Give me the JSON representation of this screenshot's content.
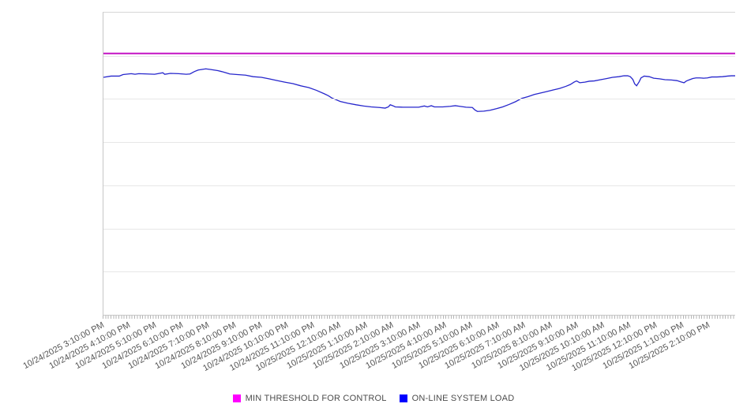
{
  "legend": {
    "items": [
      {
        "label": "MIN THRESHOLD FOR CONTROL",
        "color": "#ff00ff"
      },
      {
        "label": "ON-LINE SYSTEM LOAD",
        "color": "#0000ff"
      }
    ]
  },
  "colors": {
    "axis": "#c6c6c6",
    "plot_top_border": "#d6d6d6",
    "gridline": "#e7e7e7",
    "minor_tick": "#b4b4b4",
    "tick_label_text": "#565656",
    "legend_text": "#4c4c4c",
    "threshold_line": "#c413c4",
    "load_line": "#2626cc"
  },
  "chart_data": {
    "type": "line",
    "title": "",
    "xlabel": "",
    "ylabel": "",
    "x_axis": {
      "label_rotation_deg": -28,
      "minor_tick_spacing_px": 3.34,
      "labels": [
        "10/24/2025 3:10:00 PM",
        "10/24/2025 4:10:00 PM",
        "10/24/2025 5:10:00 PM",
        "10/24/2025 6:10:00 PM",
        "10/24/2025 7:10:00 PM",
        "10/24/2025 8:10:00 PM",
        "10/24/2025 9:10:00 PM",
        "10/24/2025 10:10:00 PM",
        "10/24/2025 11:10:00 PM",
        "10/25/2025 12:10:00 AM",
        "10/25/2025 1:10:00 AM",
        "10/25/2025 2:10:00 AM",
        "10/25/2025 3:10:00 AM",
        "10/25/2025 4:10:00 AM",
        "10/25/2025 5:10:00 AM",
        "10/25/2025 6:10:00 AM",
        "10/25/2025 7:10:00 AM",
        "10/25/2025 8:10:00 AM",
        "10/25/2025 9:10:00 AM",
        "10/25/2025 10:10:00 AM",
        "10/25/2025 11:10:00 AM",
        "10/25/2025 12:10:00 PM",
        "10/25/2025 1:10:00 PM",
        "10/25/2025 2:10:00 PM"
      ]
    },
    "y_axis": {
      "tick_labels_visible": false,
      "inner_gridlines": 6,
      "units": "percent of plot height above x-axis (no y labels shown)",
      "range": [
        0,
        100
      ]
    },
    "legend_position": "bottom-center",
    "grid": true,
    "series": [
      {
        "name": "MIN THRESHOLD FOR CONTROL",
        "type": "threshold",
        "color": "#c413c4",
        "stroke_px": 2,
        "value": 86.5
      },
      {
        "name": "ON-LINE SYSTEM LOAD",
        "type": "line",
        "color": "#2626cc",
        "stroke_px": 1.3,
        "points": [
          [
            0,
            78.6
          ],
          [
            1.2,
            79
          ],
          [
            2.5,
            79
          ],
          [
            3.1,
            79.5
          ],
          [
            4.4,
            79.8
          ],
          [
            5,
            79.6
          ],
          [
            5.6,
            79.8
          ],
          [
            6.9,
            79.7
          ],
          [
            8.1,
            79.6
          ],
          [
            9.4,
            80.1
          ],
          [
            9.7,
            79.6
          ],
          [
            10.6,
            79.9
          ],
          [
            11.9,
            79.8
          ],
          [
            13.1,
            79.6
          ],
          [
            13.7,
            79.7
          ],
          [
            14.4,
            80.5
          ],
          [
            15,
            81
          ],
          [
            15.6,
            81.2
          ],
          [
            16.2,
            81.4
          ],
          [
            16.9,
            81.2
          ],
          [
            17.5,
            81
          ],
          [
            18.1,
            80.8
          ],
          [
            18.7,
            80.5
          ],
          [
            19.4,
            80.1
          ],
          [
            20,
            79.7
          ],
          [
            20.6,
            79.6
          ],
          [
            21.2,
            79.5
          ],
          [
            22.5,
            79.3
          ],
          [
            23.7,
            78.8
          ],
          [
            25,
            78.6
          ],
          [
            26.2,
            78.1
          ],
          [
            27.5,
            77.5
          ],
          [
            28.7,
            77
          ],
          [
            30,
            76.5
          ],
          [
            31.2,
            75.8
          ],
          [
            32.5,
            75.2
          ],
          [
            33.7,
            74.3
          ],
          [
            35,
            73.1
          ],
          [
            35.6,
            72.5
          ],
          [
            36.2,
            71.7
          ],
          [
            36.8,
            71.2
          ],
          [
            37.5,
            70.6
          ],
          [
            38.1,
            70.3
          ],
          [
            38.7,
            70
          ],
          [
            40,
            69.5
          ],
          [
            41.2,
            69.1
          ],
          [
            42.4,
            68.8
          ],
          [
            43.7,
            68.6
          ],
          [
            44.6,
            68.4
          ],
          [
            45.1,
            68.8
          ],
          [
            45.4,
            69.5
          ],
          [
            45.8,
            69.2
          ],
          [
            46.2,
            68.8
          ],
          [
            47.4,
            68.7
          ],
          [
            48.7,
            68.7
          ],
          [
            49.9,
            68.7
          ],
          [
            50.8,
            69.1
          ],
          [
            51.3,
            68.8
          ],
          [
            51.9,
            69.2
          ],
          [
            52.4,
            68.8
          ],
          [
            53.7,
            68.8
          ],
          [
            54.9,
            69
          ],
          [
            55.7,
            69.2
          ],
          [
            56.4,
            69
          ],
          [
            57.4,
            68.7
          ],
          [
            58.4,
            68.6
          ],
          [
            58.8,
            67.8
          ],
          [
            59.2,
            67.3
          ],
          [
            60.2,
            67.4
          ],
          [
            61.2,
            67.7
          ],
          [
            62.2,
            68.2
          ],
          [
            63.2,
            68.8
          ],
          [
            64.2,
            69.6
          ],
          [
            65.2,
            70.5
          ],
          [
            66.2,
            71.6
          ],
          [
            67.2,
            72.2
          ],
          [
            68.2,
            72.9
          ],
          [
            69.2,
            73.4
          ],
          [
            70.2,
            73.9
          ],
          [
            71.2,
            74.4
          ],
          [
            72.2,
            74.9
          ],
          [
            73.2,
            75.6
          ],
          [
            73.9,
            76.2
          ],
          [
            74.5,
            77
          ],
          [
            74.9,
            77.4
          ],
          [
            75.4,
            76.8
          ],
          [
            76.2,
            77
          ],
          [
            76.9,
            77.3
          ],
          [
            77.7,
            77.4
          ],
          [
            78.7,
            77.8
          ],
          [
            79.7,
            78.2
          ],
          [
            80.6,
            78.6
          ],
          [
            81.6,
            78.8
          ],
          [
            82.4,
            79.1
          ],
          [
            83,
            79.1
          ],
          [
            83.4,
            78.8
          ],
          [
            83.8,
            77.9
          ],
          [
            84.1,
            76.4
          ],
          [
            84.4,
            75.8
          ],
          [
            84.8,
            77.1
          ],
          [
            85.1,
            78.4
          ],
          [
            85.6,
            79
          ],
          [
            86.4,
            78.8
          ],
          [
            87.1,
            78.3
          ],
          [
            88,
            78.1
          ],
          [
            88.9,
            77.8
          ],
          [
            89.9,
            77.7
          ],
          [
            90.8,
            77.5
          ],
          [
            91.4,
            77.1
          ],
          [
            91.9,
            76.8
          ],
          [
            92.3,
            77.4
          ],
          [
            92.8,
            77.8
          ],
          [
            93.3,
            78.2
          ],
          [
            93.8,
            78.4
          ],
          [
            94.4,
            78.4
          ],
          [
            95,
            78.3
          ],
          [
            95.6,
            78.4
          ],
          [
            96.3,
            78.7
          ],
          [
            97.1,
            78.7
          ],
          [
            98,
            78.8
          ],
          [
            98.8,
            79
          ],
          [
            99.4,
            79.1
          ],
          [
            100,
            79.1
          ]
        ]
      }
    ]
  }
}
